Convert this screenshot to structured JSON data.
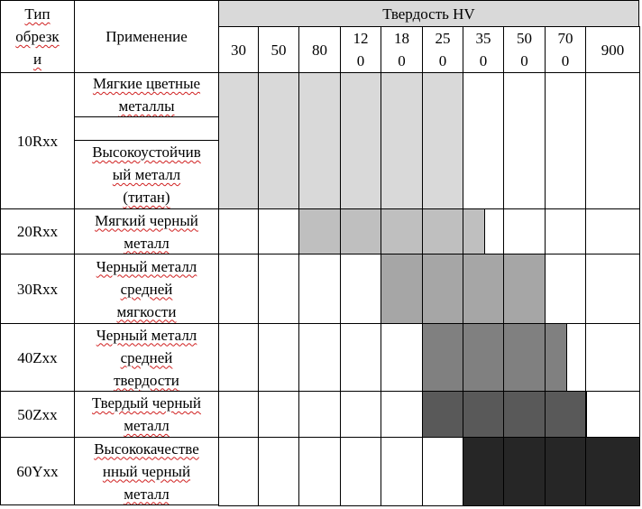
{
  "header": {
    "type_col": "Тип\nобрезк\nи",
    "application_col": "Применение",
    "hardness_group": "Твердость HV",
    "hv_values": [
      "30",
      "50",
      "80",
      "12\n0",
      "18\n0",
      "25\n0",
      "35\n0",
      "50\n0",
      "70\n0",
      "900"
    ]
  },
  "rows": [
    {
      "type": "10Rxx",
      "applications": [
        "Мягкие цветные\nметаллы",
        "",
        "Высокоустойчив\nый металл\n(титан)"
      ],
      "range_label": "30–250 HV",
      "range_color": "#d9d9d9"
    },
    {
      "type": "20Rxx",
      "applications": [
        "Мягкий черный\nметалл"
      ],
      "range_label": "80–350 HV",
      "range_color": "#bfbfbf"
    },
    {
      "type": "30Rxx",
      "applications": [
        "Черный металл\nсредней\nмягкости"
      ],
      "range_label": "180–500 HV",
      "range_color": "#a6a6a6"
    },
    {
      "type": "40Zxx",
      "applications": [
        "Черный металл\nсредней\nтвердости"
      ],
      "range_label": "250–700 HV",
      "range_color": "#808080"
    },
    {
      "type": "50Zxx",
      "applications": [
        "Твердый черный\nметалл"
      ],
      "range_label": "250–700 HV",
      "range_color": "#595959"
    },
    {
      "type": "60Yxx",
      "applications": [
        "Высококачестве\nнный черный\nметалл"
      ],
      "range_label": "350–900 HV",
      "range_color": "#262626"
    }
  ]
}
